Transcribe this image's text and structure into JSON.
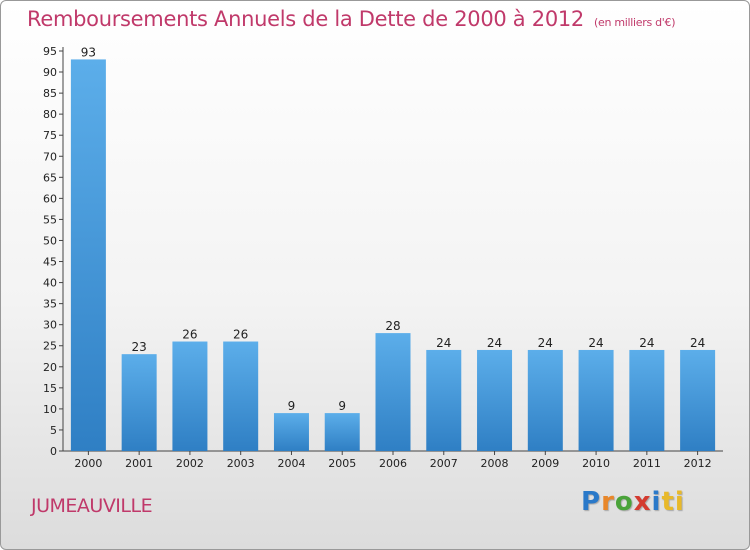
{
  "chart_data": {
    "type": "bar",
    "title": "Remboursements Annuels de la Dette de 2000 à 2012",
    "unit": "(en milliers d'€)",
    "categories": [
      "2000",
      "2001",
      "2002",
      "2003",
      "2004",
      "2005",
      "2006",
      "2007",
      "2008",
      "2009",
      "2010",
      "2011",
      "2012"
    ],
    "values": [
      93,
      23,
      26,
      26,
      9,
      9,
      28,
      24,
      24,
      24,
      24,
      24,
      24
    ],
    "ylim": [
      0,
      95
    ],
    "yticks": [
      0,
      5,
      10,
      15,
      20,
      25,
      30,
      35,
      40,
      45,
      50,
      55,
      60,
      65,
      70,
      75,
      80,
      85,
      90,
      95
    ],
    "grid": false,
    "bar_color": "#4a9de0"
  },
  "place": "JUMEAUVILLE",
  "logo": {
    "letters": [
      "P",
      "r",
      "o",
      "x",
      "i",
      "ti"
    ],
    "colors": [
      "#2a79c9",
      "#e8872a",
      "#4aa33a",
      "#d43b30",
      "#2a79c9",
      "#e8b92a"
    ]
  },
  "text_color": "#c0396a"
}
